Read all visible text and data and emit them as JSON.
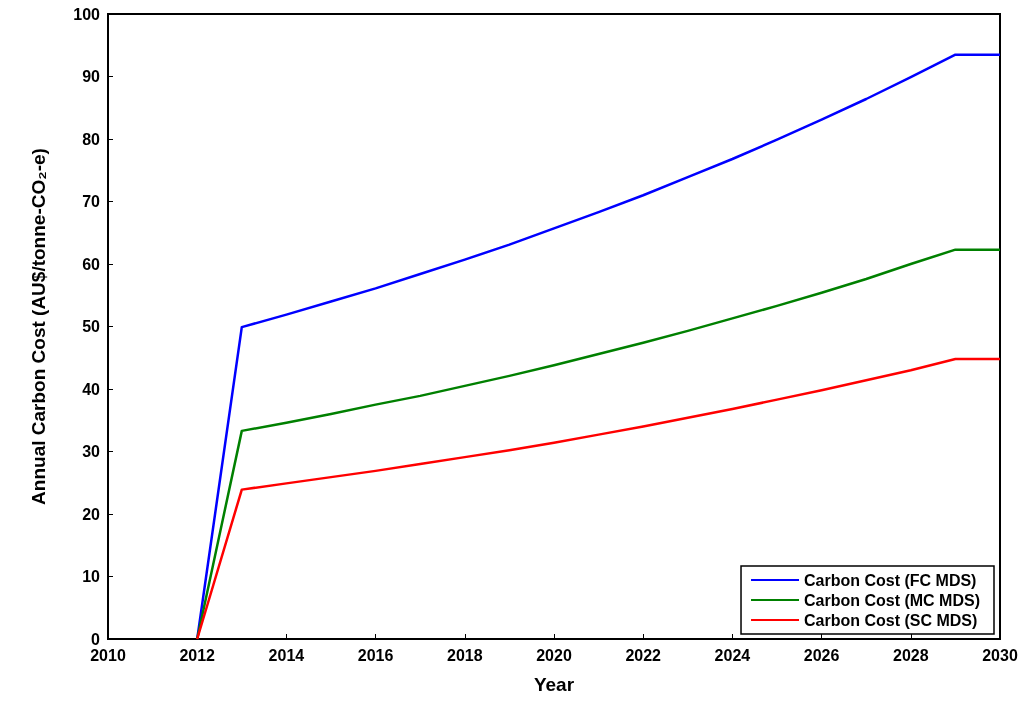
{
  "chart_data": {
    "type": "line",
    "xlabel": "Year",
    "ylabel": "Annual Carbon Cost (AU$/tonne-CO₂-e)",
    "x": [
      2012,
      2013,
      2014,
      2015,
      2016,
      2017,
      2018,
      2019,
      2020,
      2021,
      2022,
      2023,
      2024,
      2025,
      2026,
      2027,
      2028,
      2029,
      2030
    ],
    "series": [
      {
        "name": "Carbon Cost (FC MDS)",
        "color": "#0000ff",
        "values": [
          0,
          49.9,
          51.9,
          54.0,
          56.1,
          58.4,
          60.7,
          63.1,
          65.7,
          68.3,
          71.0,
          73.9,
          76.8,
          79.9,
          83.1,
          86.4,
          89.9,
          93.5,
          93.5
        ]
      },
      {
        "name": "Carbon Cost (MC MDS)",
        "color": "#008000",
        "values": [
          0,
          33.3,
          34.6,
          36.0,
          37.5,
          38.9,
          40.5,
          42.1,
          43.8,
          45.6,
          47.4,
          49.3,
          51.3,
          53.3,
          55.4,
          57.6,
          60.0,
          62.3,
          62.3
        ]
      },
      {
        "name": "Carbon Cost (SC MDS)",
        "color": "#ff0000",
        "values": [
          0,
          23.9,
          24.9,
          25.9,
          26.9,
          28.0,
          29.1,
          30.2,
          31.4,
          32.7,
          34.0,
          35.4,
          36.8,
          38.3,
          39.8,
          41.4,
          43.0,
          44.8,
          44.8
        ]
      }
    ],
    "xlim": [
      2010,
      2030
    ],
    "xticks": [
      2010,
      2012,
      2014,
      2016,
      2018,
      2020,
      2022,
      2024,
      2026,
      2028,
      2030
    ],
    "ylim": [
      0,
      100
    ],
    "yticks": [
      0,
      10,
      20,
      30,
      40,
      50,
      60,
      70,
      80,
      90,
      100
    ],
    "grid": false,
    "legend": "bottom right",
    "marker": "none",
    "line_style": "solid"
  }
}
